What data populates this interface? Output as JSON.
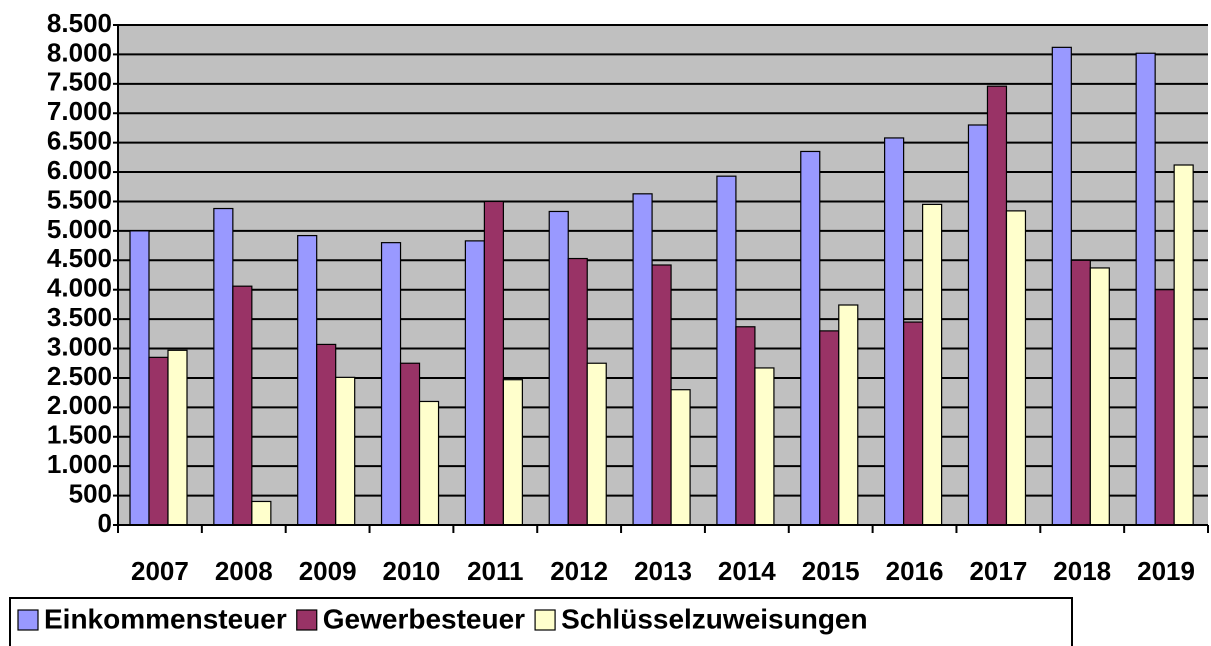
{
  "chart_data": {
    "type": "bar",
    "categories": [
      "2007",
      "2008",
      "2009",
      "2010",
      "2011",
      "2012",
      "2013",
      "2014",
      "2015",
      "2016",
      "2017",
      "2018",
      "2019"
    ],
    "series": [
      {
        "name": "Einkommensteuer",
        "color": "#9999ff",
        "values": [
          5000,
          5380,
          4920,
          4800,
          4830,
          5330,
          5630,
          5930,
          6350,
          6580,
          6800,
          8120,
          8020
        ]
      },
      {
        "name": "Gewerbesteuer",
        "color": "#993366",
        "values": [
          2850,
          4060,
          3070,
          2750,
          5500,
          4530,
          4420,
          3370,
          3300,
          3450,
          7460,
          4500,
          4000
        ]
      },
      {
        "name": "Schlüsselzuweisungen",
        "color": "#ffffcc",
        "values": [
          2970,
          400,
          2510,
          2100,
          2470,
          2750,
          2300,
          2670,
          3740,
          5450,
          5340,
          4370,
          6120
        ]
      }
    ],
    "ylim": [
      0,
      8500
    ],
    "yticks": [
      0,
      500,
      {
        "value": 1000,
        "label": "1.000"
      },
      {
        "value": 1500,
        "label": "1.500"
      },
      {
        "value": 2000,
        "label": "2.000"
      },
      {
        "value": 2500,
        "label": "2.500"
      },
      {
        "value": 3000,
        "label": "3.000"
      },
      {
        "value": 3500,
        "label": "3.500"
      },
      {
        "value": 4000,
        "label": "4.000"
      },
      {
        "value": 4500,
        "label": "4.500"
      },
      {
        "value": 5000,
        "label": "5.000"
      },
      {
        "value": 5500,
        "label": "5.500"
      },
      {
        "value": 6000,
        "label": "6.000"
      },
      {
        "value": 6500,
        "label": "6.500"
      },
      {
        "value": 7000,
        "label": "7.000"
      },
      {
        "value": 7500,
        "label": "7.500"
      },
      {
        "value": 8000,
        "label": "8.000"
      },
      {
        "value": 8500,
        "label": "8.500"
      }
    ],
    "grid": true,
    "background": "#c0c0c0",
    "legend": "bottom"
  }
}
